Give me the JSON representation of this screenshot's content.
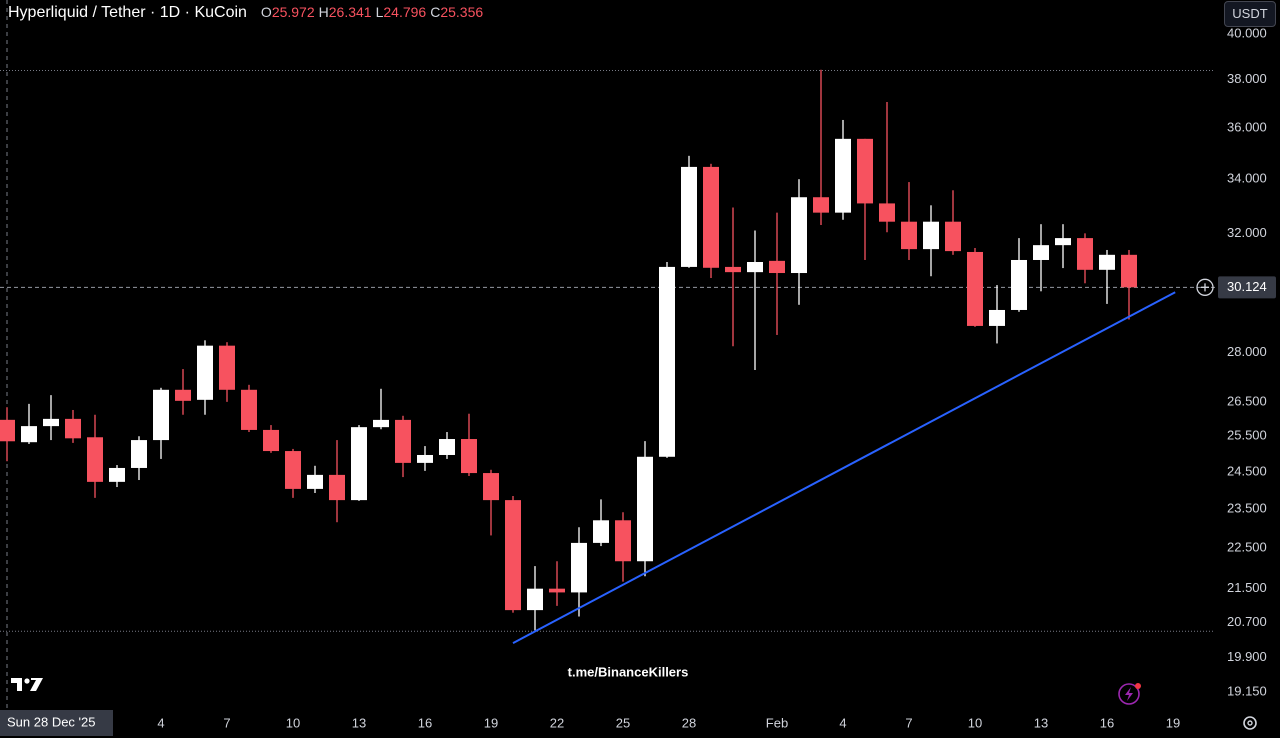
{
  "chart_data": {
    "type": "candlestick",
    "title": "Hyperliquid / Tether · 1D · KuCoin",
    "ohlc_legend": [
      {
        "key": "O",
        "value": 25.972
      },
      {
        "key": "H",
        "value": 26.341
      },
      {
        "key": "L",
        "value": 24.796
      },
      {
        "key": "C",
        "value": 25.356
      }
    ],
    "currency_button": "USDT",
    "watermark": "t.me/BinanceKillers",
    "categories": [
      "Sun 28 Dec '25",
      null,
      null,
      null,
      null,
      null,
      null,
      "4",
      null,
      null,
      "7",
      null,
      null,
      "10",
      null,
      null,
      "13",
      null,
      null,
      "16",
      null,
      null,
      "19",
      null,
      null,
      "22",
      null,
      null,
      "25",
      null,
      null,
      "28",
      null,
      null,
      null,
      "Feb",
      null,
      null,
      "4",
      null,
      null,
      "7",
      null,
      null,
      "10",
      null,
      null,
      "13",
      null,
      null,
      "16",
      null,
      null,
      "19"
    ],
    "open": [
      25.972,
      25.33,
      25.79,
      26.0,
      25.47,
      24.23,
      24.61,
      25.39,
      26.86,
      26.56,
      28.22,
      26.86,
      25.68,
      25.08,
      24.04,
      24.42,
      23.74,
      25.76,
      25.97,
      24.75,
      24.97,
      25.42,
      24.47,
      23.74,
      20.99,
      21.5,
      21.41,
      22.63,
      23.21,
      22.17,
      24.92,
      30.82,
      34.47,
      30.82,
      30.64,
      31.03,
      30.61,
      33.32,
      32.75,
      35.57,
      33.09,
      32.42,
      31.44,
      32.42,
      31.34,
      28.85,
      29.37,
      31.06,
      31.58,
      31.83,
      30.72,
      31.24,
      null,
      null
    ],
    "high": [
      26.341,
      26.44,
      26.7,
      26.26,
      26.12,
      24.69,
      25.5,
      26.92,
      27.49,
      28.39,
      28.33,
      27.01,
      25.82,
      25.14,
      24.67,
      25.39,
      25.82,
      26.89,
      26.09,
      25.22,
      25.62,
      26.15,
      24.56,
      23.85,
      22.05,
      22.17,
      23.03,
      23.76,
      23.42,
      25.36,
      30.99,
      34.9,
      34.59,
      32.94,
      32.1,
      32.75,
      34.0,
      38.43,
      36.33,
      35.57,
      37.07,
      33.89,
      33.02,
      33.58,
      31.48,
      30.2,
      31.83,
      32.33,
      32.33,
      32.0,
      31.41,
      31.41,
      null,
      null
    ],
    "low": [
      24.796,
      25.28,
      25.39,
      25.31,
      23.8,
      24.09,
      24.28,
      24.86,
      26.12,
      26.12,
      26.5,
      25.62,
      25.03,
      23.8,
      23.93,
      23.16,
      23.72,
      25.7,
      24.36,
      24.53,
      24.86,
      24.39,
      22.82,
      20.93,
      20.52,
      21.09,
      20.84,
      22.55,
      21.67,
      21.8,
      24.89,
      30.79,
      30.44,
      28.2,
      27.46,
      28.56,
      29.54,
      32.3,
      32.49,
      31.06,
      32.04,
      31.06,
      30.5,
      31.24,
      28.82,
      28.29,
      29.31,
      29.99,
      30.78,
      30.26,
      29.57,
      29.06,
      null,
      null
    ],
    "close": [
      25.356,
      25.79,
      26.0,
      25.44,
      24.23,
      24.61,
      25.39,
      26.86,
      26.53,
      28.22,
      26.86,
      25.68,
      25.08,
      24.04,
      24.42,
      23.74,
      25.76,
      25.97,
      24.75,
      24.97,
      25.42,
      24.47,
      23.74,
      20.99,
      21.5,
      21.41,
      22.63,
      23.21,
      22.17,
      24.92,
      30.82,
      34.47,
      30.79,
      30.64,
      30.99,
      30.61,
      33.32,
      32.75,
      35.57,
      33.09,
      32.42,
      31.44,
      32.42,
      31.37,
      28.85,
      29.37,
      31.06,
      31.58,
      31.83,
      30.72,
      31.24,
      30.124,
      null,
      null
    ],
    "up_color": "#ffffff",
    "down_color": "#f7525f",
    "last_price": 30.124,
    "horizontal_lines": [
      38.4,
      20.5
    ],
    "trend_line": {
      "color": "#2962ff",
      "x": [
        23,
        53.1
      ],
      "values": [
        20.23,
        29.96
      ]
    },
    "log_scale": true,
    "grid": false,
    "ylim": [
      18.77,
      41.55
    ],
    "yticks": [
      {
        "value": 40,
        "label": "40.000"
      },
      {
        "value": 38,
        "label": "38.000"
      },
      {
        "value": 36,
        "label": "36.000"
      },
      {
        "value": 34,
        "label": "34.000"
      },
      {
        "value": 32,
        "label": "32.000"
      },
      {
        "value": 28,
        "label": "28.000"
      },
      {
        "value": 26.5,
        "label": "26.500"
      },
      {
        "value": 25.5,
        "label": "25.500"
      },
      {
        "value": 24.5,
        "label": "24.500"
      },
      {
        "value": 23.5,
        "label": "23.500"
      },
      {
        "value": 22.5,
        "label": "22.500"
      },
      {
        "value": 21.5,
        "label": "21.500"
      },
      {
        "value": 20.7,
        "label": "20.700"
      },
      {
        "value": 19.9,
        "label": "19.900"
      },
      {
        "value": 19.15,
        "label": "19.150"
      }
    ]
  }
}
